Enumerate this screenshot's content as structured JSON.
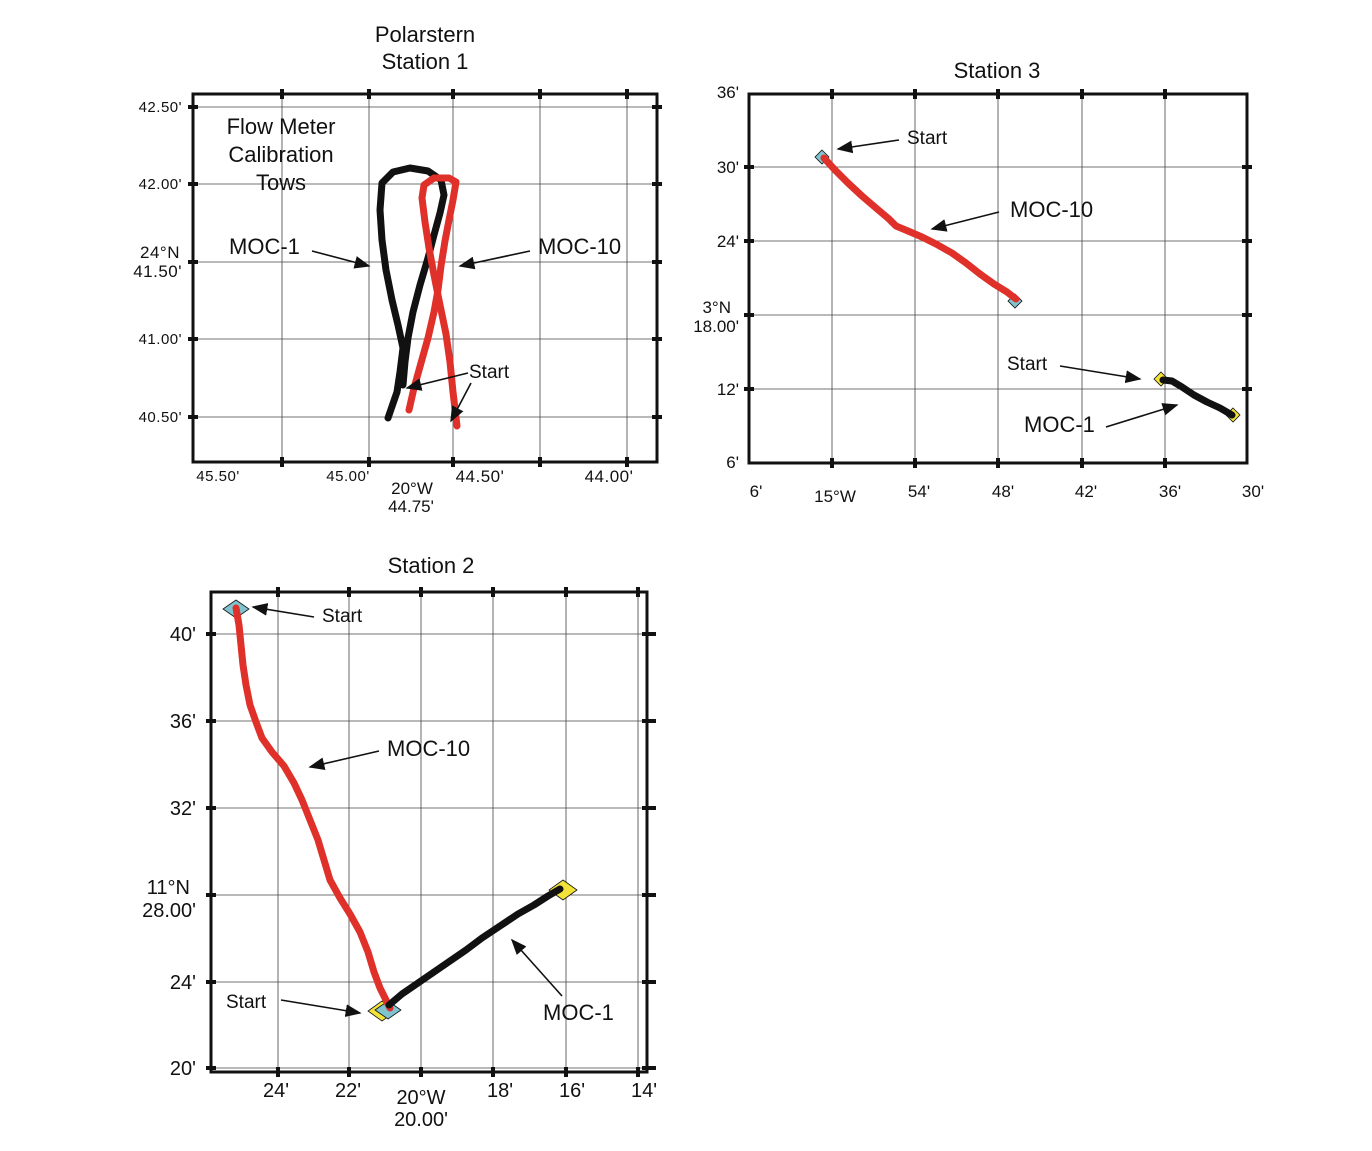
{
  "panels": {
    "station1": {
      "title_line1": "Polarstern",
      "title_line2": "Station 1",
      "note_line1": "Flow Meter",
      "note_line2": "Calibration",
      "note_line3": "Tows",
      "x_ticks": [
        "45.50'",
        "45.00'",
        "44.50'",
        "44.00'"
      ],
      "x_center_top": "20°W",
      "x_center_bottom": "44.75'",
      "y_ticks": [
        "42.50'",
        "42.00'",
        "41.00'",
        "40.50'"
      ],
      "y_center_top": "24°N",
      "y_center_bottom": "41.50'",
      "labels": {
        "moc1": "MOC-1",
        "moc10": "MOC-10",
        "start": "Start"
      }
    },
    "station3": {
      "title": "Station 3",
      "x_ticks": [
        "6'",
        "54'",
        "48'",
        "42'",
        "36'",
        "30'"
      ],
      "x_center": "15°W",
      "y_ticks": [
        "36'",
        "30'",
        "24'",
        "12'",
        "6'"
      ],
      "y_center_top": "3°N",
      "y_center_bottom": "18.00'",
      "labels": {
        "moc1": "MOC-1",
        "moc10": "MOC-10",
        "start1": "Start",
        "start2": "Start"
      }
    },
    "station2": {
      "title": "Station 2",
      "x_ticks": [
        "24'",
        "22'",
        "18'",
        "16'",
        "14'"
      ],
      "x_center_top": "20°W",
      "x_center_bottom": "20.00'",
      "y_ticks": [
        "40'",
        "36'",
        "32'",
        "24'",
        "20'"
      ],
      "y_center_top": "11°N",
      "y_center_bottom": "28.00'",
      "labels": {
        "moc1": "MOC-1",
        "moc10": "MOC-10",
        "start1": "Start",
        "start2": "Start"
      }
    }
  },
  "colors": {
    "moc10": "#e0302a",
    "moc1": "#111111",
    "start_marker": "#7fc3cf",
    "end_marker": "#f2e23a"
  }
}
